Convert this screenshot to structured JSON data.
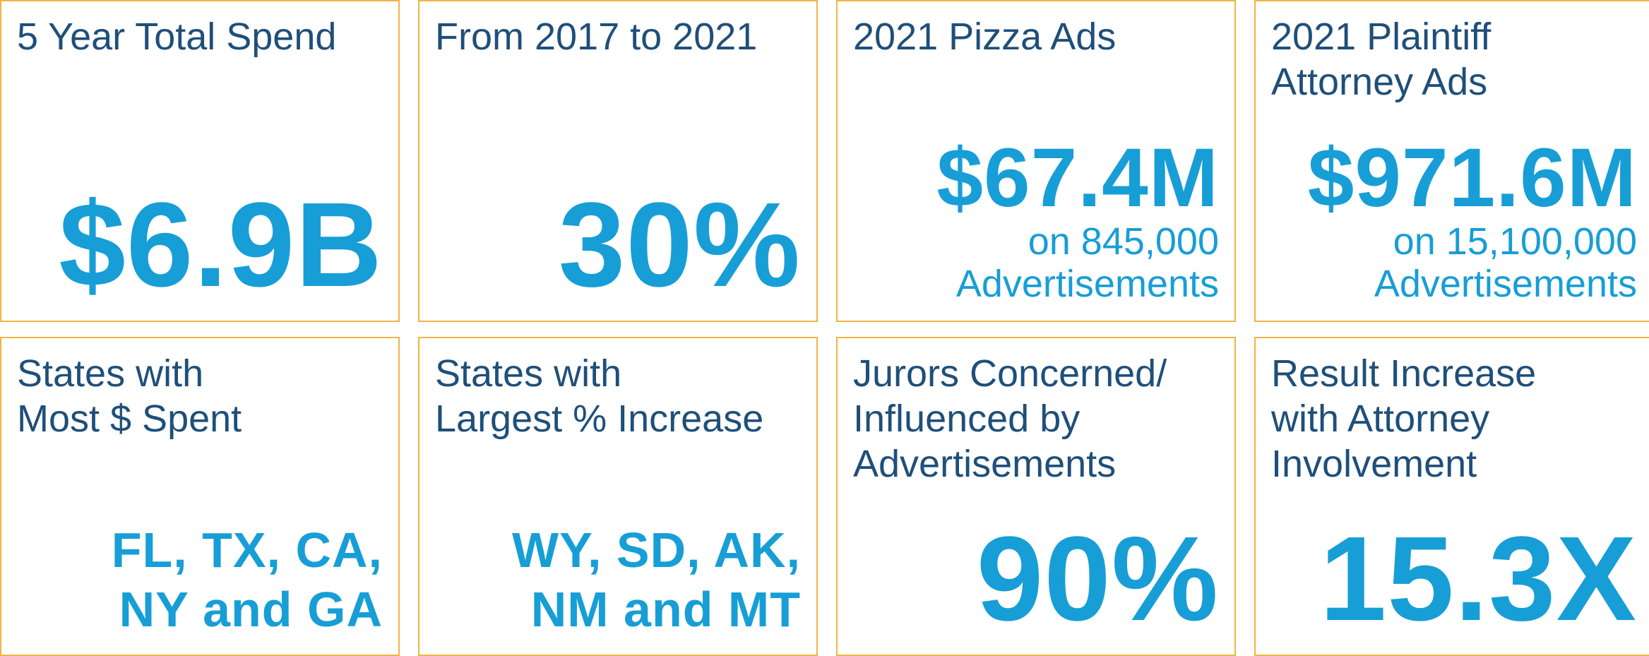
{
  "cards": [
    {
      "label": [
        "5 Year Total Spend"
      ],
      "value": [
        "$6.9B"
      ],
      "size": "xl"
    },
    {
      "label": [
        "From 2017 to 2021"
      ],
      "value": [
        "30%"
      ],
      "size": "xl"
    },
    {
      "label": [
        "2021 Pizza Ads"
      ],
      "value": [
        "$67.4M"
      ],
      "sub": [
        "on 845,000",
        "Advertisements"
      ],
      "size": "lg"
    },
    {
      "label": [
        "2021 Plaintiff",
        "Attorney Ads"
      ],
      "value": [
        "$971.6M"
      ],
      "sub": [
        "on 15,100,000",
        "Advertisements"
      ],
      "size": "lg"
    },
    {
      "label": [
        "States with",
        "Most $ Spent"
      ],
      "value": [
        "FL, TX, CA,",
        "NY and GA"
      ],
      "size": "md"
    },
    {
      "label": [
        "States with",
        "Largest % Increase"
      ],
      "value": [
        "WY, SD, AK,",
        "NM and MT"
      ],
      "size": "md"
    },
    {
      "label": [
        "Jurors Concerned/",
        "Influenced by",
        "Advertisements"
      ],
      "value": [
        "90%"
      ],
      "size": "xl"
    },
    {
      "label": [
        "Result Increase",
        "with Attorney",
        "Involvement"
      ],
      "value": [
        "15.3X"
      ],
      "size": "xl"
    }
  ]
}
